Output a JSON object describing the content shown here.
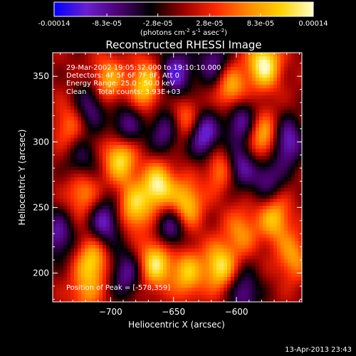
{
  "colorbar": {
    "tick_labels": [
      "-0.00014",
      "-8.3e-05",
      "-2.8e-05",
      "2.8e-05",
      "8.3e-05",
      "0.00014"
    ],
    "tick_values": [
      -0.00014,
      -8.3e-05,
      -2.8e-05,
      2.8e-05,
      8.3e-05,
      0.00014
    ],
    "range": [
      -0.00014,
      0.00014
    ],
    "units_prefix": "(photons cm",
    "units_exp1": "-2",
    "units_mid": " s",
    "units_exp2": "-1",
    "units_mid2": " asec",
    "units_exp3": "-2",
    "units_suffix": ")",
    "colors": [
      "#0000ff",
      "#6a1fd0",
      "#4b0070",
      "#000000",
      "#9a0000",
      "#ff2a00",
      "#ff8a00",
      "#ffd200",
      "#ffffc8"
    ]
  },
  "chart_data": {
    "type": "heatmap",
    "title": "Reconstructed RHESSI Image",
    "xlabel": "Heliocentric X (arcsec)",
    "ylabel": "Heliocentric Y (arcsec)",
    "xlim": [
      -746,
      -548
    ],
    "ylim": [
      178,
      368
    ],
    "x_ticks": [
      -700,
      -650,
      -600
    ],
    "y_ticks": [
      200,
      250,
      300,
      350
    ],
    "x_tick_labels": [
      "−700",
      "−650",
      "−600"
    ],
    "y_tick_labels": [
      "200",
      "250",
      "300",
      "350"
    ],
    "info_lines": [
      "29-Mar-2002 19:05:32.000 to 19:10:10.000",
      "Detectors: 4F 5F 6F 7F 8F, Att 0",
      "Energy Range: 25.0 - 50.0 keV",
      "Clean     Total counts: 3.93E+03"
    ],
    "peak_label": "Position of Peak = [-578,359]",
    "peak_position": [
      -578,
      359
    ],
    "blobs": [
      {
        "x": -578,
        "y": 359,
        "a": 1.0
      },
      {
        "x": -604,
        "y": 340,
        "a": 0.75
      },
      {
        "x": -672,
        "y": 343,
        "a": 0.8
      },
      {
        "x": -702,
        "y": 346,
        "a": 0.65
      },
      {
        "x": -692,
        "y": 289,
        "a": 0.95
      },
      {
        "x": -662,
        "y": 266,
        "a": 0.95
      },
      {
        "x": -681,
        "y": 250,
        "a": 0.75
      },
      {
        "x": -640,
        "y": 252,
        "a": 0.8
      },
      {
        "x": -578,
        "y": 303,
        "a": 0.75
      },
      {
        "x": -570,
        "y": 242,
        "a": 0.7
      },
      {
        "x": -612,
        "y": 280,
        "a": 0.6
      },
      {
        "x": -664,
        "y": 208,
        "a": 0.9
      },
      {
        "x": -613,
        "y": 205,
        "a": 0.85
      },
      {
        "x": -639,
        "y": 200,
        "a": 0.7
      },
      {
        "x": -714,
        "y": 210,
        "a": 0.75
      },
      {
        "x": -722,
        "y": 262,
        "a": 0.6
      },
      {
        "x": -732,
        "y": 312,
        "a": 0.45
      },
      {
        "x": -640,
        "y": 317,
        "a": 0.55
      },
      {
        "x": -555,
        "y": 212,
        "a": 0.55
      },
      {
        "x": -720,
        "y": 185,
        "a": 0.45
      },
      {
        "x": -596,
        "y": 232,
        "a": 0.5
      },
      {
        "x": -648,
        "y": 352,
        "a": -0.8
      },
      {
        "x": -618,
        "y": 360,
        "a": -0.6
      },
      {
        "x": -688,
        "y": 310,
        "a": -0.7
      },
      {
        "x": -657,
        "y": 308,
        "a": -0.6
      },
      {
        "x": -626,
        "y": 305,
        "a": -0.9
      },
      {
        "x": -597,
        "y": 318,
        "a": -0.7
      },
      {
        "x": -652,
        "y": 235,
        "a": -0.7
      },
      {
        "x": -705,
        "y": 238,
        "a": -0.75
      },
      {
        "x": -716,
        "y": 327,
        "a": -0.6
      },
      {
        "x": -598,
        "y": 282,
        "a": -0.7
      },
      {
        "x": -575,
        "y": 272,
        "a": -0.6
      },
      {
        "x": -560,
        "y": 300,
        "a": -0.8
      },
      {
        "x": -742,
        "y": 229,
        "a": -0.65
      },
      {
        "x": -688,
        "y": 200,
        "a": -0.6
      },
      {
        "x": -594,
        "y": 185,
        "a": -0.6
      },
      {
        "x": -723,
        "y": 285,
        "a": -0.5
      }
    ]
  },
  "footer": {
    "timestamp": "13-Apr-2013 23:43"
  }
}
